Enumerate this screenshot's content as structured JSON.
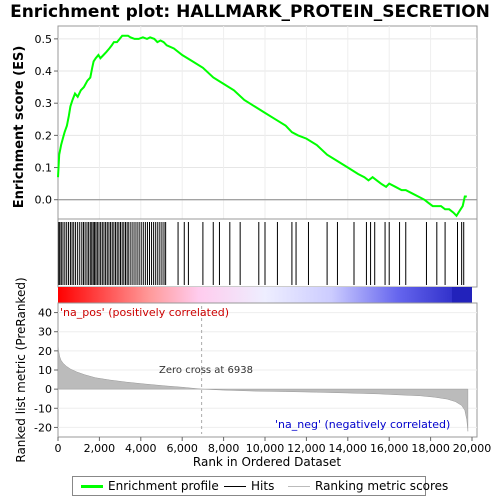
{
  "title": "Enrichment plot: HALLMARK_PROTEIN_SECRETION",
  "colors": {
    "es_line": "#00ff00",
    "hits": "#000000",
    "ranking": "#999999",
    "pos_label": "#cc0000",
    "neg_label": "#0000cc",
    "frame": "#999999"
  },
  "chart_data": [
    {
      "type": "line",
      "ylabel": "Enrichment score (ES)",
      "ylim": [
        -0.06,
        0.54
      ],
      "yticks": [
        0.0,
        0.1,
        0.2,
        0.3,
        0.4,
        0.5
      ],
      "ytick_labels": [
        "0.0",
        "0.1",
        "0.2",
        "0.3",
        "0.4",
        "0.5"
      ],
      "xlim": [
        0,
        20000
      ],
      "grid": true,
      "series": [
        {
          "name": "Enrichment profile",
          "x": [
            0,
            60,
            150,
            230,
            320,
            430,
            520,
            600,
            700,
            820,
            950,
            1100,
            1250,
            1420,
            1560,
            1650,
            1720,
            1820,
            1950,
            2050,
            2200,
            2350,
            2480,
            2600,
            2700,
            2850,
            2980,
            3100,
            3250,
            3380,
            3500,
            3700,
            3900,
            4100,
            4300,
            4450,
            4650,
            4800,
            4950,
            5100,
            5250,
            5600,
            6000,
            6500,
            7000,
            7500,
            8000,
            8500,
            9000,
            9500,
            10000,
            10500,
            11000,
            11300,
            11600,
            12000,
            12500,
            13000,
            13500,
            14000,
            14500,
            14800,
            15000,
            15200,
            15400,
            15600,
            15850,
            16000,
            16300,
            16600,
            16800,
            17100,
            17400,
            17700,
            17900,
            18100,
            18300,
            18500,
            18700,
            18900,
            19100,
            19250,
            19350,
            19450,
            19550,
            19650,
            19750
          ],
          "y": [
            0.07,
            0.14,
            0.17,
            0.19,
            0.21,
            0.23,
            0.26,
            0.29,
            0.31,
            0.33,
            0.32,
            0.34,
            0.35,
            0.37,
            0.38,
            0.41,
            0.43,
            0.44,
            0.45,
            0.44,
            0.45,
            0.46,
            0.47,
            0.48,
            0.49,
            0.49,
            0.5,
            0.51,
            0.51,
            0.51,
            0.505,
            0.5,
            0.5,
            0.505,
            0.5,
            0.505,
            0.5,
            0.49,
            0.495,
            0.49,
            0.48,
            0.47,
            0.45,
            0.43,
            0.41,
            0.38,
            0.36,
            0.34,
            0.31,
            0.29,
            0.27,
            0.25,
            0.23,
            0.21,
            0.2,
            0.19,
            0.17,
            0.14,
            0.12,
            0.1,
            0.08,
            0.07,
            0.06,
            0.07,
            0.06,
            0.05,
            0.04,
            0.05,
            0.04,
            0.03,
            0.03,
            0.02,
            0.01,
            0.0,
            -0.01,
            -0.02,
            -0.02,
            -0.02,
            -0.03,
            -0.03,
            -0.04,
            -0.05,
            -0.04,
            -0.03,
            -0.02,
            0.01,
            0.01
          ]
        }
      ]
    },
    {
      "type": "scatter",
      "series": [
        {
          "name": "Hits",
          "x": [
            40,
            90,
            160,
            240,
            330,
            420,
            510,
            600,
            680,
            760,
            850,
            950,
            1050,
            1150,
            1230,
            1310,
            1400,
            1480,
            1560,
            1630,
            1700,
            1760,
            1830,
            1900,
            1980,
            2060,
            2140,
            2220,
            2300,
            2380,
            2460,
            2540,
            2620,
            2700,
            2780,
            2860,
            2940,
            3020,
            3100,
            3180,
            3260,
            3340,
            3420,
            3520,
            3620,
            3720,
            3820,
            3920,
            4020,
            4120,
            4220,
            4320,
            4420,
            4520,
            4620,
            4720,
            4820,
            4920,
            5020,
            5120,
            5200,
            5800,
            6100,
            6300,
            7000,
            7500,
            7800,
            8300,
            8800,
            9700,
            10000,
            10600,
            11300,
            11500,
            12100,
            13000,
            13500,
            14300,
            14900,
            15100,
            15300,
            15800,
            16000,
            16500,
            16800,
            17800,
            18300,
            18700,
            19300,
            19500,
            19600
          ]
        }
      ]
    },
    {
      "type": "area",
      "ylabel": "Ranked list metric (PreRanked)",
      "xlabel": "Rank in Ordered Dataset",
      "ylim": [
        -25,
        45
      ],
      "yticks": [
        -20,
        -10,
        0,
        10,
        20,
        30,
        40
      ],
      "ytick_labels": [
        "-20",
        "-10",
        "0",
        "10",
        "20",
        "30",
        "40"
      ],
      "xlim": [
        0,
        20000
      ],
      "xticks": [
        0,
        2000,
        4000,
        6000,
        8000,
        10000,
        12000,
        14000,
        16000,
        18000,
        20000
      ],
      "xtick_labels": [
        "0",
        "2,000",
        "4,000",
        "6,000",
        "8,000",
        "10,000",
        "12,000",
        "14,000",
        "16,000",
        "18,000",
        "20,000"
      ],
      "series": [
        {
          "name": "Ranking metric scores",
          "x": [
            0,
            30,
            80,
            150,
            250,
            400,
            600,
            900,
            1300,
            1800,
            2500,
            3300,
            4200,
            5200,
            6000,
            6938,
            8000,
            9500,
            11000,
            12500,
            14000,
            15500,
            16500,
            17500,
            18200,
            18800,
            19200,
            19500,
            19650,
            19750,
            19800
          ],
          "y": [
            24,
            20,
            17,
            15,
            13.5,
            12,
            10.5,
            9,
            7.5,
            6,
            4.8,
            3.7,
            2.7,
            1.7,
            1.0,
            0,
            -0.5,
            -1.0,
            -1.3,
            -1.6,
            -2.0,
            -2.5,
            -3.0,
            -3.5,
            -4.2,
            -5.2,
            -6.5,
            -8.5,
            -11,
            -16,
            -22
          ]
        }
      ],
      "annotations": [
        "Zero cross at 6938",
        "'na_pos' (positively correlated)",
        "'na_neg' (negatively correlated)"
      ],
      "zero_cross": 6938
    }
  ],
  "legend": {
    "items": [
      "Enrichment profile",
      "Hits",
      "Ranking metric scores"
    ]
  }
}
